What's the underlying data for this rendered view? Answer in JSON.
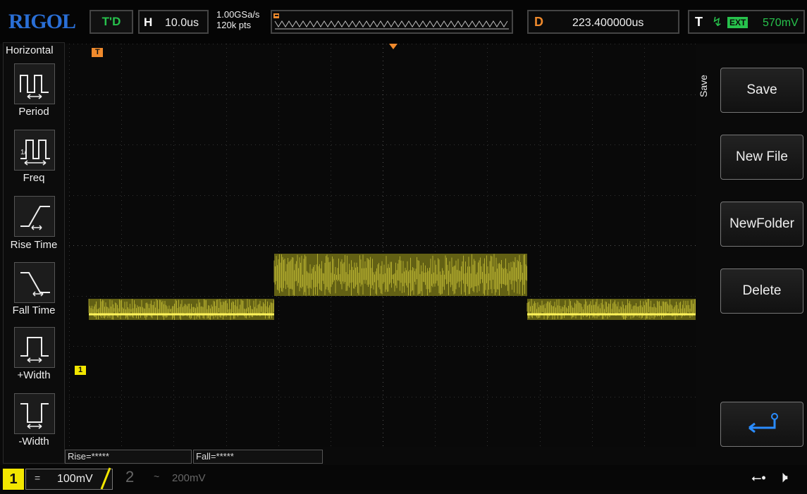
{
  "top_bar": {
    "logo": "RIGOL",
    "run_status": "T'D",
    "timebase_label": "H",
    "timebase_value": "10.0us",
    "sample_rate": "1.00GSa/s",
    "memory_depth": "120k pts",
    "delay_label": "D",
    "delay_value": "223.400000us",
    "trigger_label": "T",
    "trigger_source": "EXT",
    "trigger_level": "570mV",
    "icons": [
      "trigger-rising-edge-icon"
    ]
  },
  "left_menu": {
    "title": "Horizontal",
    "items": [
      {
        "label": "Period",
        "icon": "period-icon"
      },
      {
        "label": "Freq",
        "icon": "freq-icon"
      },
      {
        "label": "Rise Time",
        "icon": "rise-time-icon"
      },
      {
        "label": "Fall Time",
        "icon": "fall-time-icon"
      },
      {
        "label": "+Width",
        "icon": "positive-width-icon"
      },
      {
        "label": "-Width",
        "icon": "negative-width-icon"
      }
    ]
  },
  "right_menu": {
    "title": "Save",
    "buttons": [
      {
        "label": "Save"
      },
      {
        "label": "New File"
      },
      {
        "label": "NewFolder"
      },
      {
        "label": "Delete"
      }
    ],
    "back_icon": "return-icon"
  },
  "screen": {
    "trigger_marker": "T",
    "channel_marker": "1"
  },
  "measurements": {
    "rise": "Rise=*****",
    "fall": "Fall=*****"
  },
  "bottom_bar": {
    "ch1_number": "1",
    "ch1_coupling": "=",
    "ch1_scale": "100mV",
    "ch2_number": "2",
    "ch2_coupling": "~",
    "ch2_scale": "200mV",
    "icons": [
      "usb-icon",
      "speaker-icon"
    ]
  },
  "colors": {
    "ch1": "#f2e600",
    "accent_blue": "#2a6fd6",
    "trigger_green": "#27c24c",
    "delay_orange": "#f08a2c"
  }
}
